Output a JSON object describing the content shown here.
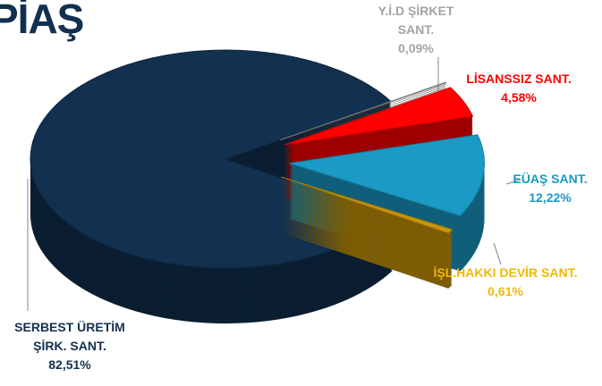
{
  "logo_text": "PİAŞ",
  "chart_data": {
    "type": "pie",
    "categories": [
      "Y.İ.D  ŞİRKET SANT.",
      "LİSANSSIZ SANT.",
      "EÜAŞ SANT.",
      "İŞL.HAKKI DEVİR SANT.",
      "SERBEST ÜRETİM ŞİRK. SANT."
    ],
    "values": [
      0.09,
      4.58,
      12.22,
      0.61,
      82.51
    ],
    "value_labels": [
      "0,09%",
      "4,58%",
      "12,22%",
      "0,61%",
      "82,51%"
    ],
    "colors": [
      "#9a9a9a",
      "#ff0000",
      "#1a9ac4",
      "#c8960a",
      "#12304f"
    ],
    "label_colors": [
      "#a3a3a3",
      "#ff0000",
      "#1a9ac4",
      "#f2b705",
      "#12304f"
    ]
  }
}
